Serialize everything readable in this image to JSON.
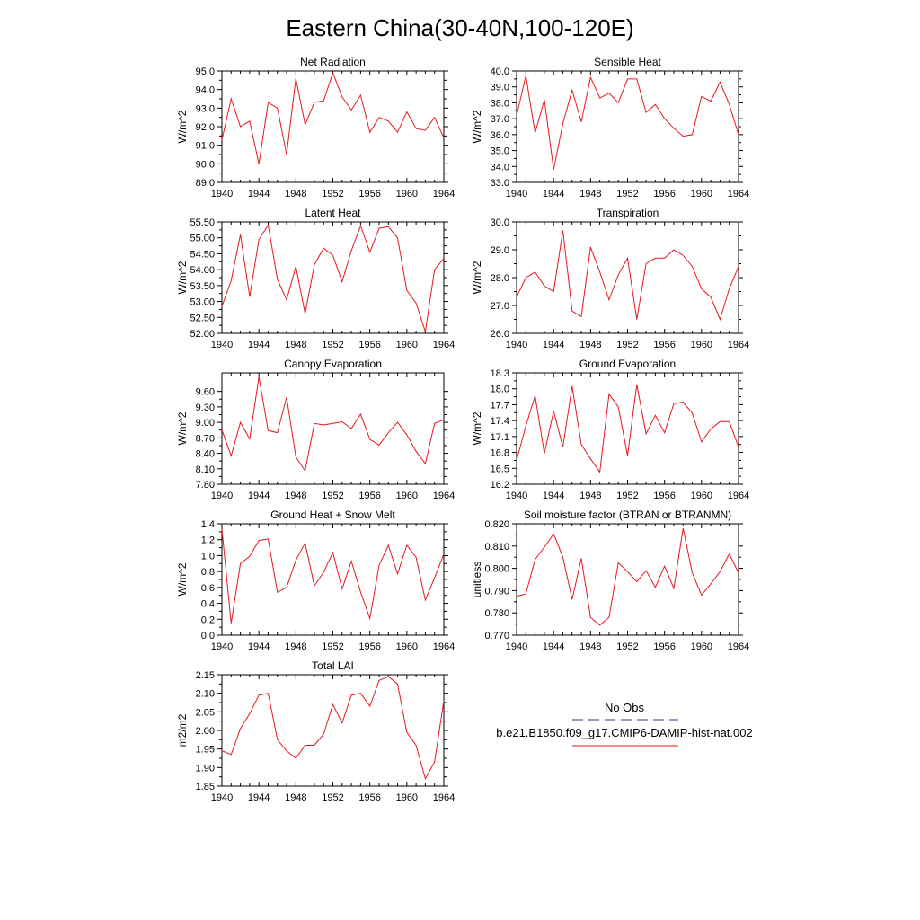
{
  "figure": {
    "title": "Eastern China(30-40N,100-120E)"
  },
  "legend": {
    "entries": [
      {
        "label": "No Obs",
        "color": "#1f3a93",
        "dash": "dashed"
      },
      {
        "label": "b.e21.B1850.f09_g17.CMIP6-DAMIP-hist-nat.002",
        "color": "#e8161e",
        "dash": "solid"
      }
    ]
  },
  "chart_data": [
    {
      "type": "line",
      "title": "Net Radiation",
      "ylabel": "W/m^2",
      "xlim": [
        1940,
        1964
      ],
      "ylim": [
        89.0,
        95.0
      ],
      "xticks": [
        1940,
        1944,
        1948,
        1952,
        1956,
        1960,
        1964
      ],
      "yticks": [
        89.0,
        90.0,
        91.0,
        92.0,
        93.0,
        94.0,
        95.0
      ],
      "ydec": 1,
      "x": [
        1940,
        1941,
        1942,
        1943,
        1944,
        1945,
        1946,
        1947,
        1948,
        1949,
        1950,
        1951,
        1952,
        1953,
        1954,
        1955,
        1956,
        1957,
        1958,
        1959,
        1960,
        1961,
        1962,
        1963,
        1964
      ],
      "series": [
        {
          "values": [
            91.3,
            93.5,
            92.0,
            92.3,
            90.0,
            93.3,
            93.0,
            90.5,
            94.6,
            92.1,
            93.3,
            93.4,
            94.9,
            93.6,
            92.9,
            93.7,
            91.7,
            92.5,
            92.3,
            91.7,
            92.8,
            91.9,
            91.8,
            92.5,
            91.4
          ]
        }
      ]
    },
    {
      "type": "line",
      "title": "Sensible Heat",
      "ylabel": "W/m^2",
      "xlim": [
        1940,
        1964
      ],
      "ylim": [
        33.0,
        40.0
      ],
      "xticks": [
        1940,
        1944,
        1948,
        1952,
        1956,
        1960,
        1964
      ],
      "yticks": [
        33.0,
        34.0,
        35.0,
        36.0,
        37.0,
        38.0,
        39.0,
        40.0
      ],
      "ydec": 1,
      "x": [
        1940,
        1941,
        1942,
        1943,
        1944,
        1945,
        1946,
        1947,
        1948,
        1949,
        1950,
        1951,
        1952,
        1953,
        1954,
        1955,
        1956,
        1957,
        1958,
        1959,
        1960,
        1961,
        1962,
        1963,
        1964
      ],
      "series": [
        {
          "values": [
            37.2,
            39.7,
            36.1,
            38.2,
            33.8,
            36.7,
            38.8,
            36.8,
            39.6,
            38.3,
            38.6,
            38.0,
            39.5,
            39.5,
            37.4,
            37.9,
            37.0,
            36.4,
            35.9,
            36.0,
            38.4,
            38.1,
            39.3,
            37.9,
            36.0
          ]
        }
      ]
    },
    {
      "type": "line",
      "title": "Latent Heat",
      "ylabel": "W/m^2",
      "xlim": [
        1940,
        1964
      ],
      "ylim": [
        52.0,
        55.5
      ],
      "xticks": [
        1940,
        1944,
        1948,
        1952,
        1956,
        1960,
        1964
      ],
      "yticks": [
        52.0,
        52.5,
        53.0,
        53.5,
        54.0,
        54.5,
        55.0,
        55.5
      ],
      "ydec": 2,
      "x": [
        1940,
        1941,
        1942,
        1943,
        1944,
        1945,
        1946,
        1947,
        1948,
        1949,
        1950,
        1951,
        1952,
        1953,
        1954,
        1955,
        1956,
        1957,
        1958,
        1959,
        1960,
        1961,
        1962,
        1963,
        1964
      ],
      "series": [
        {
          "values": [
            52.85,
            53.65,
            55.1,
            53.15,
            54.95,
            55.4,
            53.7,
            53.05,
            54.1,
            52.62,
            54.15,
            54.68,
            54.45,
            53.62,
            54.6,
            55.38,
            54.55,
            55.3,
            55.35,
            55.0,
            53.35,
            52.95,
            52.05,
            54.0,
            54.35
          ]
        }
      ]
    },
    {
      "type": "line",
      "title": "Transpiration",
      "ylabel": "W/m^2",
      "xlim": [
        1940,
        1964
      ],
      "ylim": [
        26.0,
        30.0
      ],
      "xticks": [
        1940,
        1944,
        1948,
        1952,
        1956,
        1960,
        1964
      ],
      "yticks": [
        26.0,
        27.0,
        28.0,
        29.0,
        30.0
      ],
      "ydec": 1,
      "x": [
        1940,
        1941,
        1942,
        1943,
        1944,
        1945,
        1946,
        1947,
        1948,
        1949,
        1950,
        1951,
        1952,
        1953,
        1954,
        1955,
        1956,
        1957,
        1958,
        1959,
        1960,
        1961,
        1962,
        1963,
        1964
      ],
      "series": [
        {
          "values": [
            27.3,
            28.0,
            28.2,
            27.7,
            27.5,
            29.7,
            26.8,
            26.6,
            29.1,
            28.2,
            27.2,
            28.1,
            28.7,
            26.5,
            28.5,
            28.7,
            28.7,
            29.0,
            28.8,
            28.4,
            27.6,
            27.3,
            26.5,
            27.6,
            28.4
          ]
        }
      ]
    },
    {
      "type": "line",
      "title": "Canopy Evaporation",
      "ylabel": "W/m^2",
      "xlim": [
        1940,
        1964
      ],
      "ylim": [
        7.8,
        9.96
      ],
      "xticks": [
        1940,
        1944,
        1948,
        1952,
        1956,
        1960,
        1964
      ],
      "yticks": [
        7.8,
        8.1,
        8.4,
        8.7,
        9.0,
        9.3,
        9.6
      ],
      "ydec": 2,
      "x": [
        1940,
        1941,
        1942,
        1943,
        1944,
        1945,
        1946,
        1947,
        1948,
        1949,
        1950,
        1951,
        1952,
        1953,
        1954,
        1955,
        1956,
        1957,
        1958,
        1959,
        1960,
        1961,
        1962,
        1963,
        1964
      ],
      "series": [
        {
          "values": [
            8.85,
            8.35,
            9.0,
            8.68,
            9.88,
            8.84,
            8.8,
            9.49,
            8.33,
            8.06,
            8.98,
            8.95,
            8.98,
            9.01,
            8.88,
            9.16,
            8.67,
            8.56,
            8.8,
            9.0,
            8.76,
            8.44,
            8.2,
            8.98,
            9.05
          ]
        }
      ]
    },
    {
      "type": "line",
      "title": "Ground Evaporation",
      "ylabel": "W/m^2",
      "xlim": [
        1940,
        1964
      ],
      "ylim": [
        16.2,
        18.3
      ],
      "xticks": [
        1940,
        1944,
        1948,
        1952,
        1956,
        1960,
        1964
      ],
      "yticks": [
        16.2,
        16.5,
        16.8,
        17.1,
        17.4,
        17.7,
        18.0,
        18.3
      ],
      "ydec": 1,
      "x": [
        1940,
        1941,
        1942,
        1943,
        1944,
        1945,
        1946,
        1947,
        1948,
        1949,
        1950,
        1951,
        1952,
        1953,
        1954,
        1955,
        1956,
        1957,
        1958,
        1959,
        1960,
        1961,
        1962,
        1963,
        1964
      ],
      "series": [
        {
          "values": [
            16.65,
            17.3,
            17.87,
            16.78,
            17.58,
            16.9,
            18.05,
            16.95,
            16.68,
            16.43,
            17.9,
            17.66,
            16.74,
            18.08,
            17.15,
            17.5,
            17.17,
            17.72,
            17.75,
            17.54,
            17.0,
            17.24,
            17.38,
            17.38,
            16.9
          ]
        }
      ]
    },
    {
      "type": "line",
      "title": "Ground Heat + Snow Melt",
      "ylabel": "W/m^2",
      "xlim": [
        1940,
        1964
      ],
      "ylim": [
        0.0,
        1.4
      ],
      "xticks": [
        1940,
        1944,
        1948,
        1952,
        1956,
        1960,
        1964
      ],
      "yticks": [
        0.0,
        0.2,
        0.4,
        0.6,
        0.8,
        1.0,
        1.2,
        1.4
      ],
      "ydec": 1,
      "x": [
        1940,
        1941,
        1942,
        1943,
        1944,
        1945,
        1946,
        1947,
        1948,
        1949,
        1950,
        1951,
        1952,
        1953,
        1954,
        1955,
        1956,
        1957,
        1958,
        1959,
        1960,
        1961,
        1962,
        1963,
        1964
      ],
      "series": [
        {
          "values": [
            1.33,
            0.15,
            0.9,
            0.99,
            1.19,
            1.21,
            0.54,
            0.6,
            0.94,
            1.16,
            0.62,
            0.79,
            1.04,
            0.58,
            0.93,
            0.54,
            0.21,
            0.88,
            1.13,
            0.77,
            1.13,
            0.98,
            0.44,
            0.72,
            1.02
          ]
        }
      ]
    },
    {
      "type": "line",
      "title": "Soil moisture factor (BTRAN or BTRANMN)",
      "ylabel": "unitless",
      "xlim": [
        1940,
        1964
      ],
      "ylim": [
        0.77,
        0.82
      ],
      "xticks": [
        1940,
        1944,
        1948,
        1952,
        1956,
        1960,
        1964
      ],
      "yticks": [
        0.77,
        0.78,
        0.79,
        0.8,
        0.81,
        0.82
      ],
      "ydec": 3,
      "x": [
        1940,
        1941,
        1942,
        1943,
        1944,
        1945,
        1946,
        1947,
        1948,
        1949,
        1950,
        1951,
        1952,
        1953,
        1954,
        1955,
        1956,
        1957,
        1958,
        1959,
        1960,
        1961,
        1962,
        1963,
        1964
      ],
      "series": [
        {
          "values": [
            0.7875,
            0.7885,
            0.804,
            0.8095,
            0.8155,
            0.805,
            0.786,
            0.8045,
            0.778,
            0.7745,
            0.778,
            0.8025,
            0.7985,
            0.794,
            0.799,
            0.7915,
            0.801,
            0.791,
            0.818,
            0.798,
            0.788,
            0.793,
            0.7985,
            0.8065,
            0.798
          ]
        }
      ]
    },
    {
      "type": "line",
      "title": "Total LAI",
      "ylabel": "m2/m2",
      "xlim": [
        1940,
        1964
      ],
      "ylim": [
        1.85,
        2.15
      ],
      "xticks": [
        1940,
        1944,
        1948,
        1952,
        1956,
        1960,
        1964
      ],
      "yticks": [
        1.85,
        1.9,
        1.95,
        2.0,
        2.05,
        2.1,
        2.15
      ],
      "ydec": 2,
      "x": [
        1940,
        1941,
        1942,
        1943,
        1944,
        1945,
        1946,
        1947,
        1948,
        1949,
        1950,
        1951,
        1952,
        1953,
        1954,
        1955,
        1956,
        1957,
        1958,
        1959,
        1960,
        1961,
        1962,
        1963,
        1964
      ],
      "series": [
        {
          "values": [
            1.945,
            1.935,
            2.005,
            2.045,
            2.095,
            2.1,
            1.975,
            1.945,
            1.925,
            1.96,
            1.96,
            1.99,
            2.07,
            2.02,
            2.095,
            2.1,
            2.065,
            2.135,
            2.145,
            2.125,
            1.995,
            1.96,
            1.87,
            1.915,
            2.08
          ]
        }
      ]
    }
  ]
}
